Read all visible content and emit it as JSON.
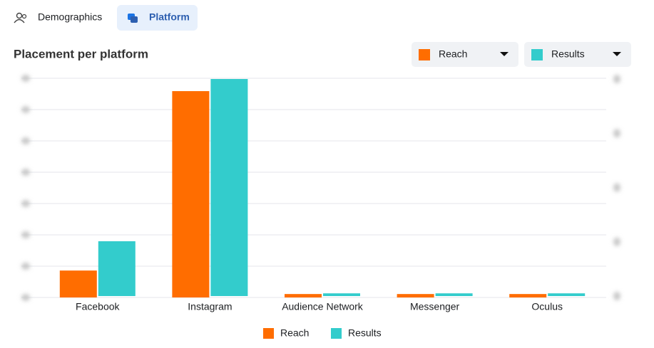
{
  "tabs": [
    "Demographics",
    "Platform"
  ],
  "chart_data": {
    "type": "bar",
    "title": "Placement per platform",
    "categories": [
      "Facebook",
      "Instagram",
      "Audience Network",
      "Messenger",
      "Oculus"
    ],
    "series": [
      {
        "name": "Reach",
        "color": "#ff6d00",
        "values": [
          0.86,
          6.59,
          0.11,
          0.11,
          0.11
        ]
      },
      {
        "name": "Results",
        "color": "#33cccc",
        "axis": "y2",
        "values": [
          1.01,
          4.0,
          0.05,
          0.05,
          0.05
        ]
      }
    ],
    "ylim": [
      0,
      7
    ],
    "yticks": [
      0,
      1,
      2,
      3,
      4,
      5,
      6,
      7
    ],
    "y2lim": [
      0,
      4
    ],
    "y2ticks": [
      0,
      1,
      2,
      3,
      4
    ],
    "grid": true
  }
}
